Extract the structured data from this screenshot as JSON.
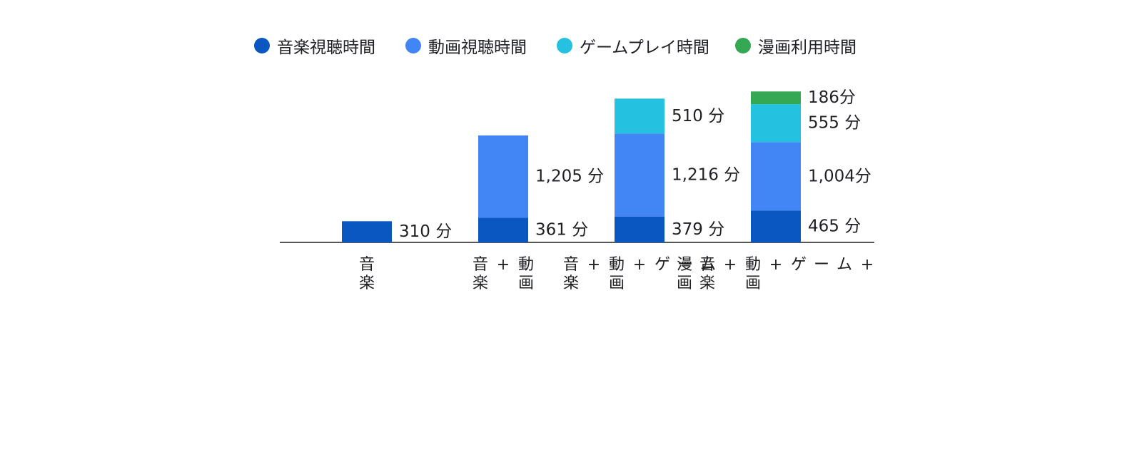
{
  "chart_data": {
    "type": "bar",
    "stacked": true,
    "categories": [
      [
        "音楽"
      ],
      [
        "音楽",
        "+",
        "動画"
      ],
      [
        "音楽",
        "+",
        "動画",
        "+",
        "ゲ",
        "ー",
        "ム"
      ],
      [
        "漫画",
        "音楽",
        "+",
        "動画",
        "+",
        "ゲ",
        "ー",
        "ム",
        "+"
      ]
    ],
    "series": [
      {
        "name": "音楽視聴時間",
        "color": "#0B57C2",
        "values": [
          310,
          361,
          379,
          465
        ],
        "labels": [
          "310 分",
          "361 分",
          "379 分",
          "465 分"
        ]
      },
      {
        "name": "動画視聴時間",
        "color": "#4285F4",
        "values": [
          0,
          1205,
          1216,
          1004
        ],
        "labels": [
          "",
          "1,205 分",
          "1,216 分",
          "1,004分"
        ]
      },
      {
        "name": "ゲームプレイ時間",
        "color": "#24C1E0",
        "values": [
          0,
          0,
          510,
          555
        ],
        "labels": [
          "",
          "",
          "510 分",
          "555 分"
        ]
      },
      {
        "name": "漫画利用時間",
        "color": "#34A853",
        "values": [
          0,
          0,
          0,
          186
        ],
        "labels": [
          "",
          "",
          "",
          "186分"
        ]
      }
    ],
    "title": "",
    "xlabel": "",
    "ylabel": "",
    "ylim": [
      0,
      2200
    ],
    "grid": false,
    "legend_position": "top"
  }
}
